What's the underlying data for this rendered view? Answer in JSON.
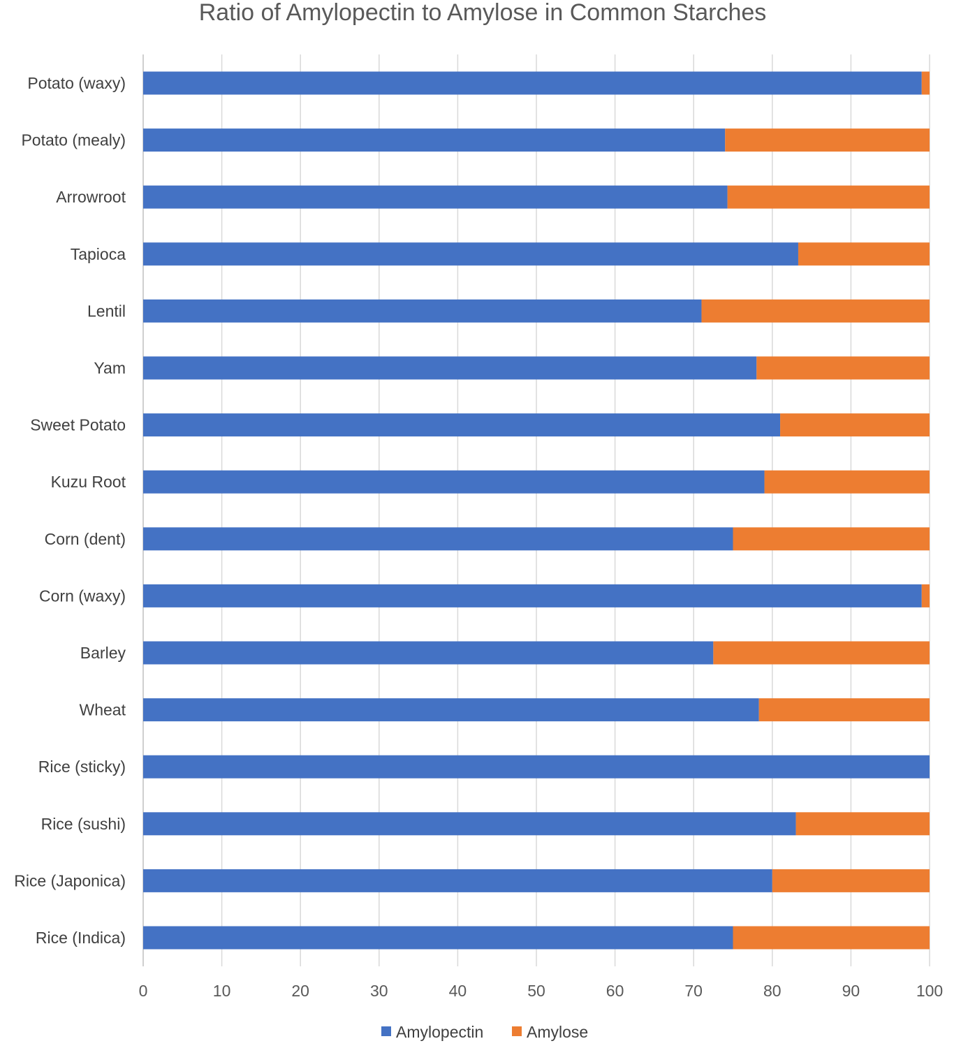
{
  "chart_data": {
    "type": "bar",
    "orientation": "horizontal",
    "stacked": true,
    "title": "Ratio of Amylopectin to Amylose in Common Starches",
    "xlabel": "",
    "ylabel": "",
    "xlim": [
      0,
      100
    ],
    "xticks": [
      "0",
      "10",
      "20",
      "30",
      "40",
      "50",
      "60",
      "70",
      "80",
      "90",
      "100"
    ],
    "grid": true,
    "legend_position": "bottom",
    "categories": [
      "Potato (waxy)",
      "Potato (mealy)",
      "Arrowroot",
      "Tapioca",
      "Lentil",
      "Yam",
      "Sweet Potato",
      "Kuzu Root",
      "Corn (dent)",
      "Corn (waxy)",
      "Barley",
      "Wheat",
      "Rice (sticky)",
      "Rice (sushi)",
      "Rice (Japonica)",
      "Rice (Indica)"
    ],
    "series": [
      {
        "name": "Amylopectin",
        "color": "#4472c4",
        "values": [
          99,
          74,
          74.3,
          83.3,
          71,
          78,
          81,
          79,
          75,
          99,
          72.5,
          78.3,
          100,
          83,
          80,
          75
        ]
      },
      {
        "name": "Amylose",
        "color": "#ed7d31",
        "values": [
          1,
          26,
          25.7,
          16.7,
          29,
          22,
          19,
          21,
          25,
          1,
          27.5,
          21.7,
          0,
          17,
          20,
          25
        ]
      }
    ]
  }
}
